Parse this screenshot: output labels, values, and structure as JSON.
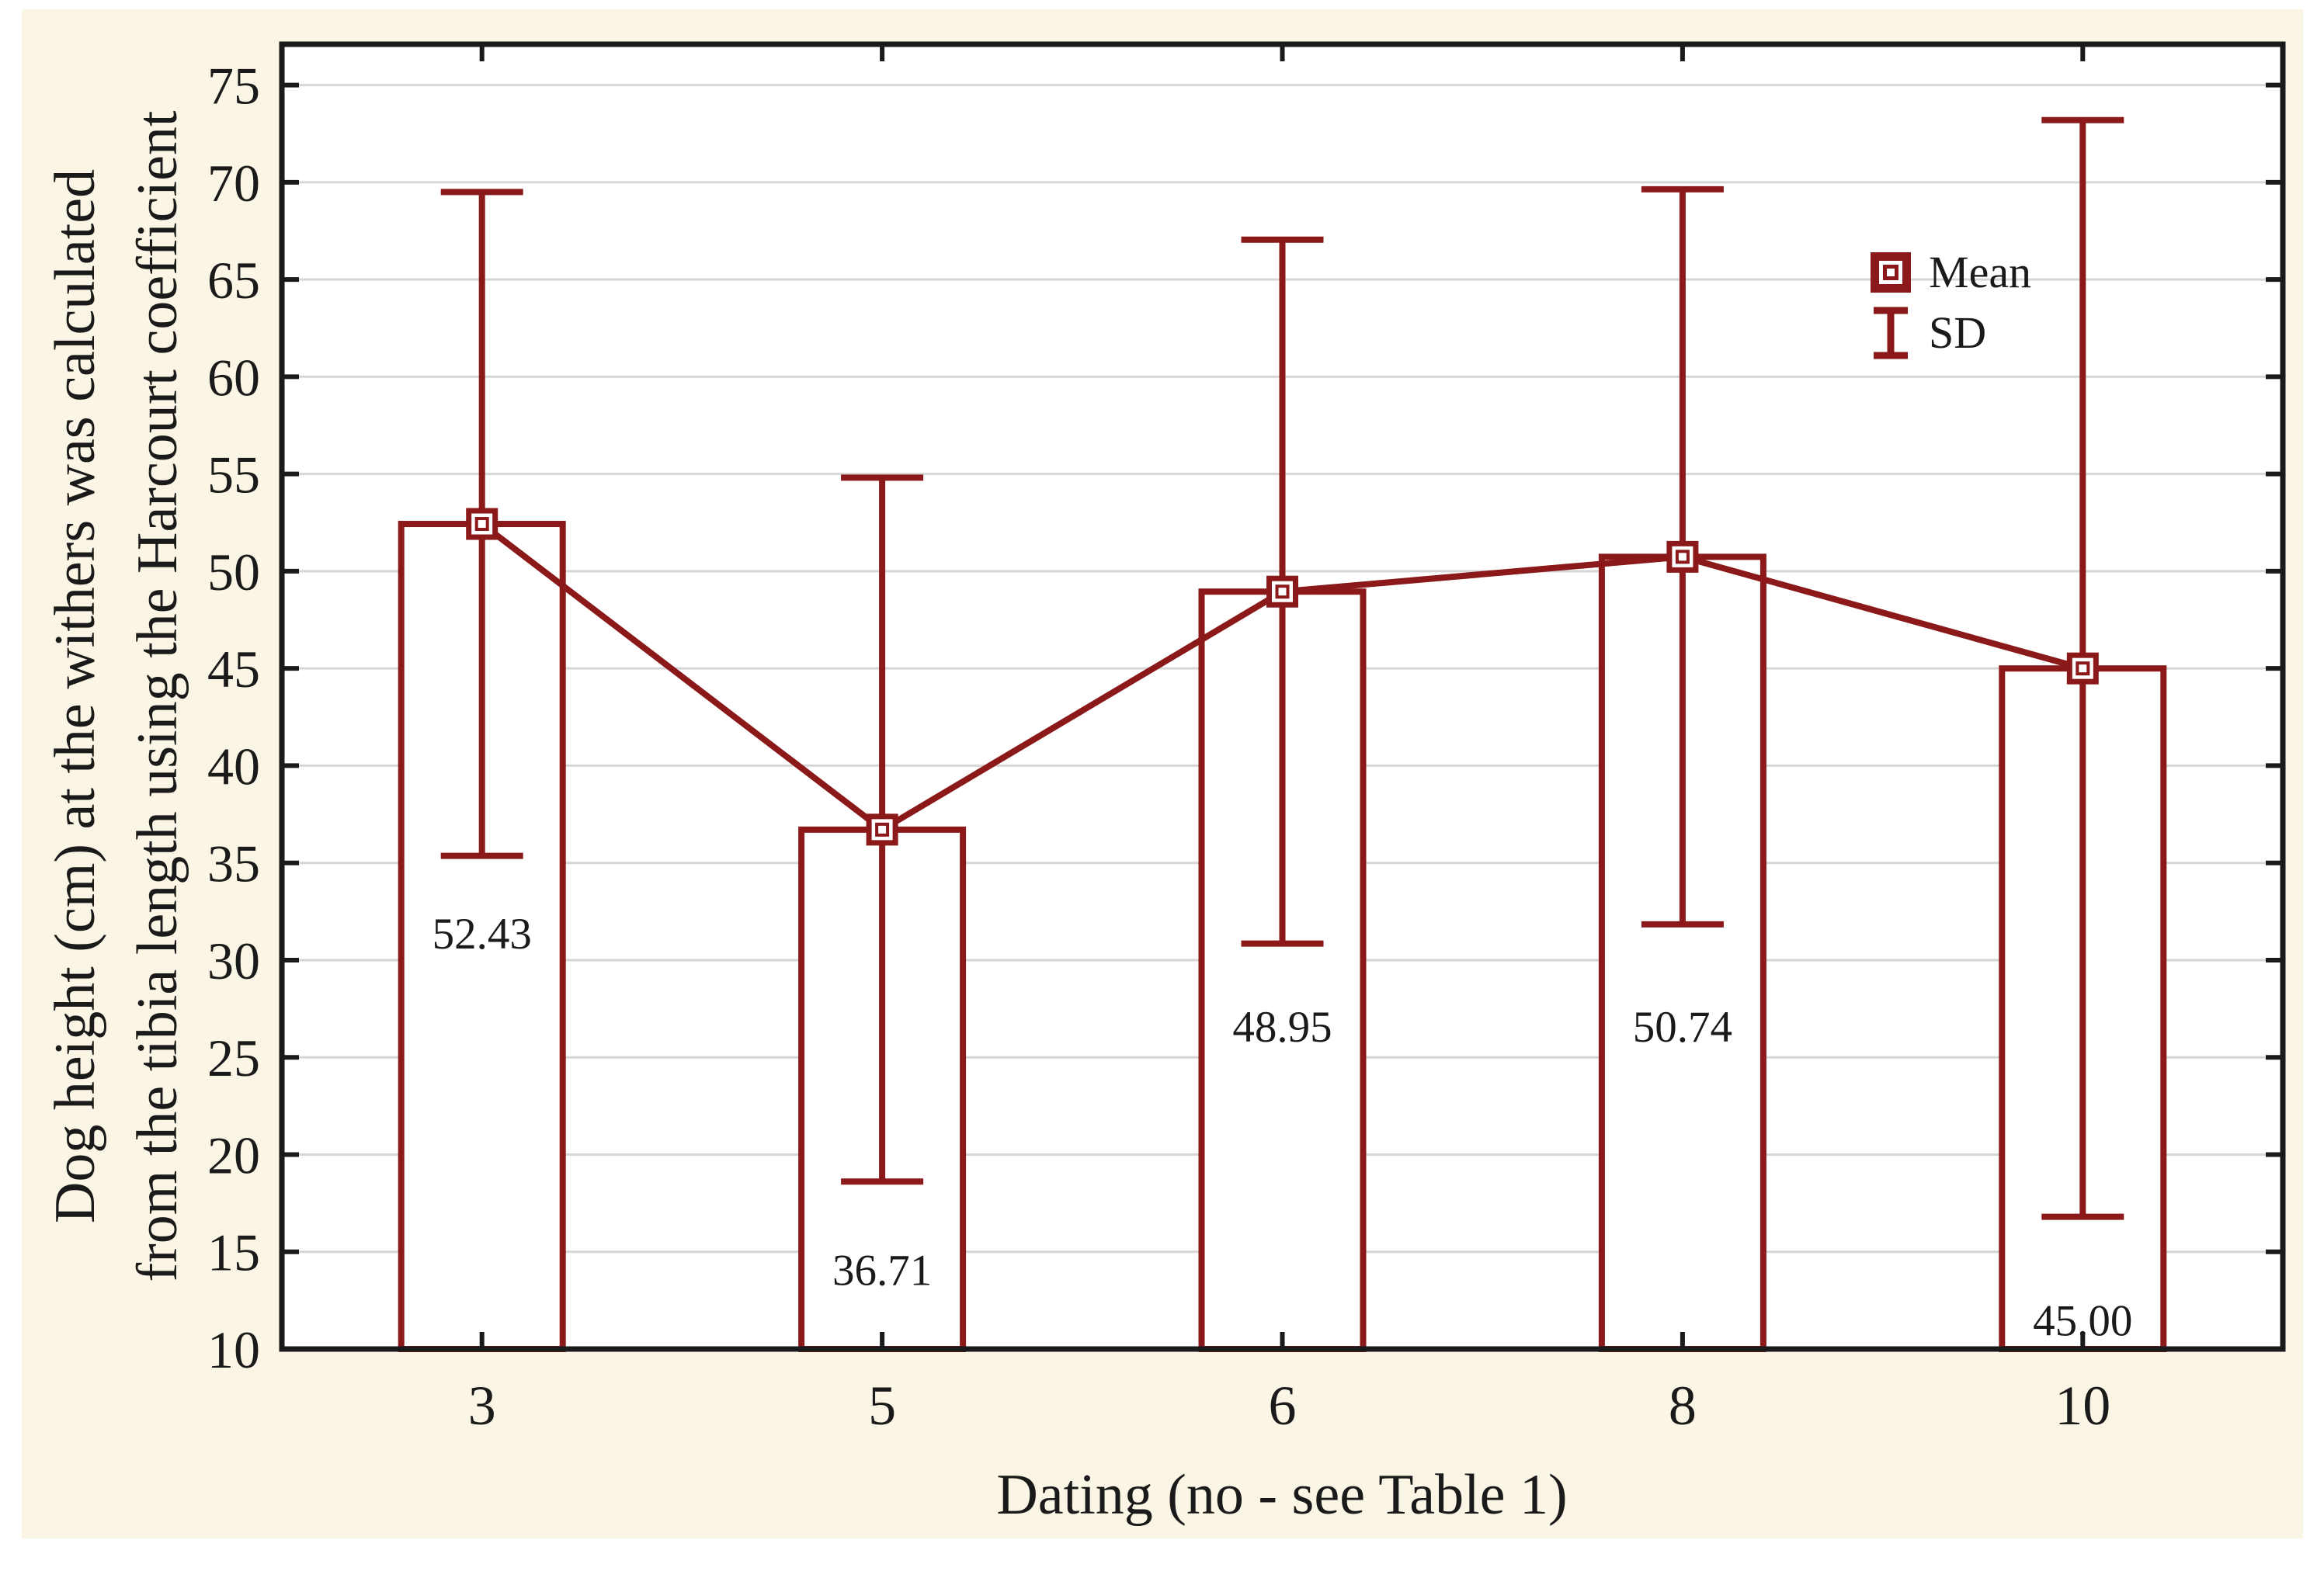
{
  "colors": {
    "maroon": "#8B1919",
    "frame": "#1A1A1A",
    "grid": "#D6D6D6",
    "panel_background": "#FAF5E4",
    "plot_background": "#FFFFFF",
    "text": "#1A1A1A"
  },
  "chart_data": {
    "type": "bar",
    "categories": [
      "3",
      "5",
      "6",
      "8",
      "10"
    ],
    "series": [
      {
        "name": "Mean",
        "values": [
          52.43,
          36.71,
          48.95,
          50.74,
          45.0
        ]
      },
      {
        "name": "SD",
        "values": [
          17.07,
          18.1,
          18.1,
          18.9,
          28.2
        ]
      }
    ],
    "bar_labels": [
      "52.43",
      "36.71",
      "48.95",
      "50.74",
      "45.00"
    ],
    "bar_label_y_positions": [
      31.4,
      14.1,
      26.6,
      26.6,
      11.5
    ],
    "title": "",
    "xlabel": "Dating (no - see Table 1)",
    "ylabel_line1": "Dog height (cm) at the withers was calculated",
    "ylabel_line2": "from the tibia length using the Harcourt coefficient",
    "ylim": [
      10,
      77.1
    ],
    "yticks": [
      10,
      15,
      20,
      25,
      30,
      35,
      40,
      45,
      50,
      55,
      60,
      65,
      70,
      75
    ],
    "grid": "on",
    "legend_position": "top-right",
    "legend": [
      {
        "label": "Mean",
        "marker": "square-in-square"
      },
      {
        "label": "SD",
        "marker": "error-bar"
      }
    ]
  }
}
